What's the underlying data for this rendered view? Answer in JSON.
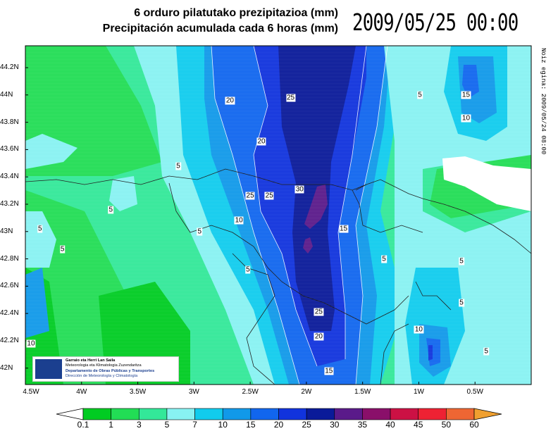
{
  "title_eu": "6 orduro pilatutako prezipitazioa (mm)",
  "title_es": "Precipitación acumulada cada 6 horas (mm)",
  "valid_time": "2009/05/25 00:00",
  "issued_text": "Noiz egina: 2009/05/24 08:00",
  "lat_labels": [
    "44.2N",
    "44N",
    "43.8N",
    "43.6N",
    "43.4N",
    "43.2N",
    "43N",
    "42.8N",
    "42.6N",
    "42.4N",
    "42.2N",
    "42N"
  ],
  "lat_values": [
    44.2,
    44.0,
    43.8,
    43.6,
    43.4,
    43.2,
    43.0,
    42.8,
    42.6,
    42.4,
    42.2,
    42.0
  ],
  "lon_labels": [
    "4.5W",
    "4W",
    "3.5W",
    "3W",
    "2.5W",
    "2W",
    "1.5W",
    "1W",
    "0.5W"
  ],
  "lon_values": [
    -4.5,
    -4.0,
    -3.5,
    -3.0,
    -2.5,
    -2.0,
    -1.5,
    -1.0,
    -0.5
  ],
  "extent": {
    "lon_min": -4.5,
    "lon_max": 0.0,
    "lat_min": 41.88,
    "lat_max": 44.36
  },
  "contour_labels": [
    {
      "text": "20",
      "lon": -2.68,
      "lat": 43.96
    },
    {
      "text": "25",
      "lon": -2.14,
      "lat": 43.98
    },
    {
      "text": "20",
      "lon": -2.4,
      "lat": 43.66
    },
    {
      "text": "25",
      "lon": -2.5,
      "lat": 43.26
    },
    {
      "text": "25",
      "lon": -2.33,
      "lat": 43.26
    },
    {
      "text": "30",
      "lon": -2.06,
      "lat": 43.31
    },
    {
      "text": "15",
      "lon": -1.67,
      "lat": 43.02
    },
    {
      "text": "10",
      "lon": -2.6,
      "lat": 43.08
    },
    {
      "text": "5",
      "lon": -3.14,
      "lat": 43.48
    },
    {
      "text": "5",
      "lon": -3.74,
      "lat": 43.16
    },
    {
      "text": "5",
      "lon": -4.37,
      "lat": 43.02
    },
    {
      "text": "5",
      "lon": -4.17,
      "lat": 42.87
    },
    {
      "text": "5",
      "lon": -2.95,
      "lat": 43.0
    },
    {
      "text": "5",
      "lon": -2.52,
      "lat": 42.72
    },
    {
      "text": "25",
      "lon": -1.89,
      "lat": 42.41
    },
    {
      "text": "20",
      "lon": -1.89,
      "lat": 42.23
    },
    {
      "text": "15",
      "lon": -1.8,
      "lat": 41.98
    },
    {
      "text": "5",
      "lon": -1.31,
      "lat": 42.8
    },
    {
      "text": "5",
      "lon": -0.99,
      "lat": 44.0
    },
    {
      "text": "15",
      "lon": -0.58,
      "lat": 44.0
    },
    {
      "text": "10",
      "lon": -0.58,
      "lat": 43.83
    },
    {
      "text": "5",
      "lon": -0.62,
      "lat": 42.78
    },
    {
      "text": "5",
      "lon": -0.62,
      "lat": 42.48
    },
    {
      "text": "10",
      "lon": -1.0,
      "lat": 42.28
    },
    {
      "text": "5",
      "lon": -0.4,
      "lat": 42.12
    },
    {
      "text": "10",
      "lon": -4.45,
      "lat": 42.18
    }
  ],
  "colorbar": {
    "labels": [
      "0.1",
      "1",
      "3",
      "5",
      "7",
      "10",
      "15",
      "20",
      "25",
      "30",
      "35",
      "40",
      "45",
      "50",
      "60"
    ],
    "colors": [
      "#00cc22",
      "#22dd55",
      "#33e899",
      "#88f2f2",
      "#11cced",
      "#1199e9",
      "#1166ee",
      "#1133dd",
      "#0a1a99",
      "#5a1a8a",
      "#8a0f6a",
      "#cc1144",
      "#ee2233",
      "#ee6633"
    ]
  },
  "logo": {
    "line1": "Garraio eta Herri Lan Saila",
    "line2": "Meteorologia eta Klimatologia Zuzendaritza",
    "line3": "Departamento de Obras Públicas y Transportes",
    "line4": "Dirección de Meteorología y Climatología",
    "seal_text": "EUSKO JAURLARITZA GOBIERNO VASCO"
  }
}
